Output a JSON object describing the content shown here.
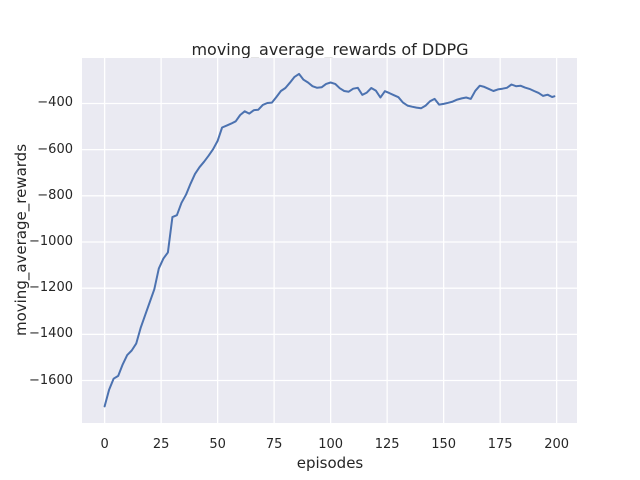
{
  "colors": {
    "figure_background": "#ffffff",
    "axes_background": "#eaeaf2",
    "grid_color": "#ffffff",
    "line_color": "#4c72b0",
    "text_color": "#262626"
  },
  "chart_data": {
    "type": "line",
    "title": "moving_average_rewards of DDPG",
    "xlabel": "episodes",
    "ylabel": "moving_average_rewards",
    "x_ticks": [
      0,
      25,
      50,
      75,
      100,
      125,
      150,
      175,
      200
    ],
    "y_ticks": [
      -400,
      -600,
      -800,
      -1000,
      -1200,
      -1400,
      -1600
    ],
    "xlim": [
      -10,
      209
    ],
    "ylim": [
      -1784,
      -203
    ],
    "grid": true,
    "legend": false,
    "series": [
      {
        "name": "moving_average_rewards",
        "x": [
          0,
          2,
          4,
          6,
          8,
          10,
          12,
          14,
          16,
          18,
          20,
          22,
          24,
          26,
          28,
          30,
          32,
          34,
          36,
          38,
          40,
          42,
          44,
          46,
          48,
          50,
          52,
          54,
          56,
          58,
          60,
          62,
          64,
          66,
          68,
          70,
          72,
          74,
          76,
          78,
          80,
          82,
          84,
          86,
          88,
          90,
          92,
          94,
          96,
          98,
          100,
          102,
          104,
          106,
          108,
          110,
          112,
          114,
          116,
          118,
          120,
          122,
          124,
          126,
          128,
          130,
          132,
          134,
          136,
          138,
          140,
          142,
          144,
          146,
          148,
          150,
          152,
          154,
          156,
          158,
          160,
          162,
          164,
          166,
          168,
          170,
          172,
          174,
          176,
          178,
          180,
          182,
          184,
          186,
          188,
          190,
          192,
          194,
          196,
          198,
          199
        ],
        "y": [
          -1712,
          -1640,
          -1592,
          -1580,
          -1530,
          -1490,
          -1470,
          -1440,
          -1370,
          -1315,
          -1260,
          -1205,
          -1115,
          -1072,
          -1045,
          -892,
          -884,
          -830,
          -795,
          -748,
          -705,
          -676,
          -652,
          -626,
          -598,
          -562,
          -504,
          -496,
          -487,
          -477,
          -450,
          -434,
          -444,
          -429,
          -427,
          -406,
          -398,
          -396,
          -372,
          -346,
          -333,
          -310,
          -285,
          -272,
          -297,
          -309,
          -325,
          -332,
          -330,
          -315,
          -309,
          -315,
          -334,
          -346,
          -349,
          -336,
          -332,
          -363,
          -353,
          -333,
          -344,
          -374,
          -347,
          -355,
          -364,
          -373,
          -396,
          -409,
          -414,
          -418,
          -421,
          -409,
          -390,
          -380,
          -405,
          -402,
          -397,
          -392,
          -383,
          -378,
          -374,
          -380,
          -345,
          -323,
          -328,
          -337,
          -346,
          -339,
          -336,
          -332,
          -318,
          -325,
          -323,
          -331,
          -337,
          -346,
          -354,
          -367,
          -362,
          -372,
          -369
        ]
      }
    ]
  }
}
